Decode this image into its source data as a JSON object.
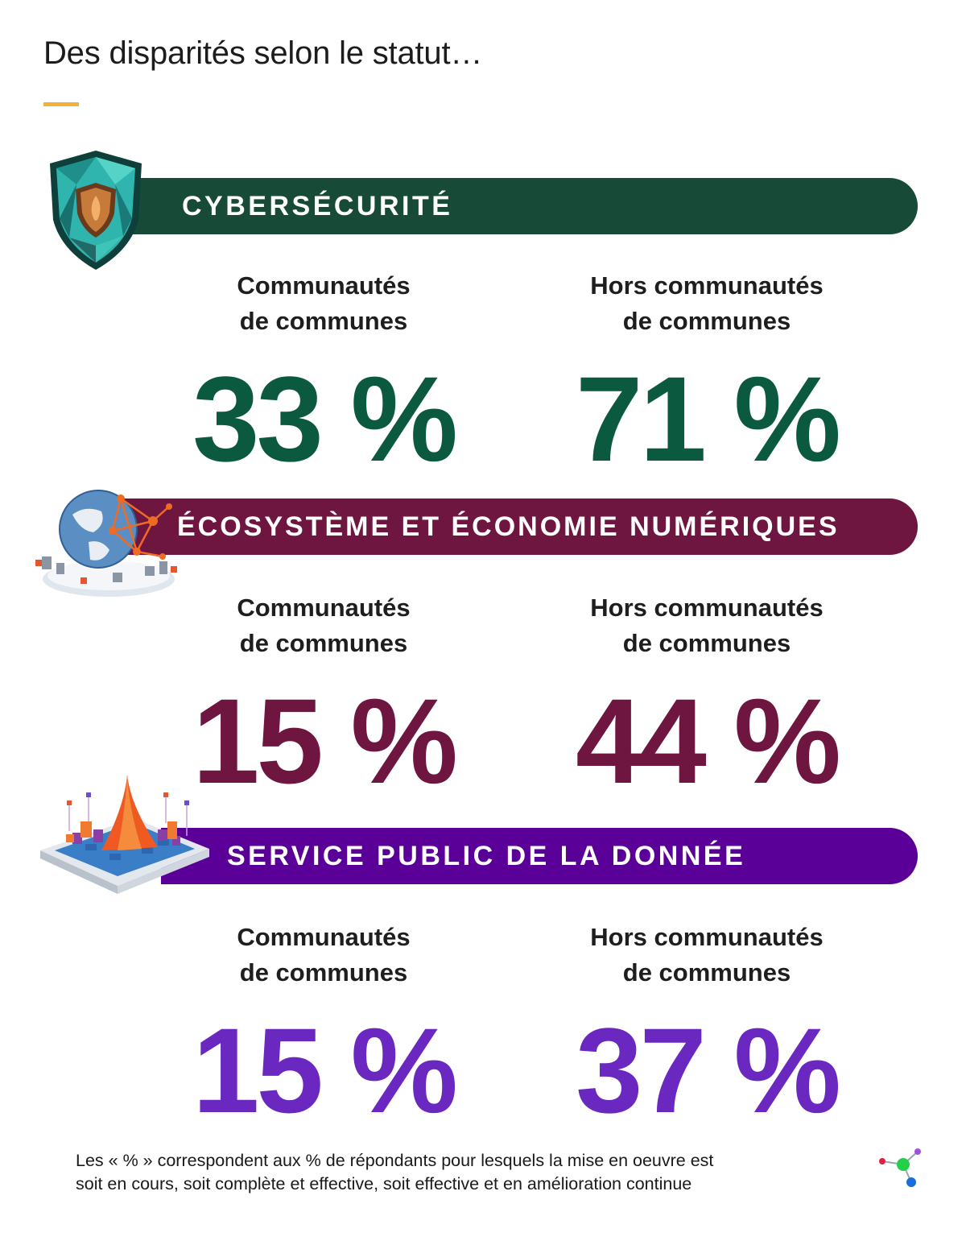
{
  "page_title": "Des disparités selon le statut…",
  "colors": {
    "accent": "#f2b134",
    "cyber": "#184a38",
    "cyber_value": "#0b5a40",
    "eco": "#6e1640",
    "eco_value": "#6e1640",
    "data": "#5a0099",
    "data_value": "#6a28c0"
  },
  "sections": [
    {
      "label": "CYBERSÉCURITÉ",
      "icon": "shield-icon",
      "left": {
        "label_line1": "Communautés",
        "label_line2": "de communes",
        "value": "33 %"
      },
      "right": {
        "label_line1": "Hors communautés",
        "label_line2": "de communes",
        "value": "71 %"
      }
    },
    {
      "label": "ÉCOSYSTÈME ET ÉCONOMIE NUMÉRIQUES",
      "icon": "globe-network-icon",
      "left": {
        "label_line1": "Communautés",
        "label_line2": "de communes",
        "value": "15 %"
      },
      "right": {
        "label_line1": "Hors communautés",
        "label_line2": "de communes",
        "value": "44 %"
      }
    },
    {
      "label": "SERVICE PUBLIC DE LA DONNÉE",
      "icon": "data-platform-icon",
      "left": {
        "label_line1": "Communautés",
        "label_line2": "de communes",
        "value": "15 %"
      },
      "right": {
        "label_line1": "Hors communautés",
        "label_line2": "de communes",
        "value": "37 %"
      }
    }
  ],
  "footnote": {
    "line1": "Les « % » correspondent aux % de répondants pour lesquels la mise en oeuvre est",
    "line2": "soit en cours, soit complète et effective, soit effective et en amélioration continue"
  },
  "logo": "molecule-logo-icon"
}
